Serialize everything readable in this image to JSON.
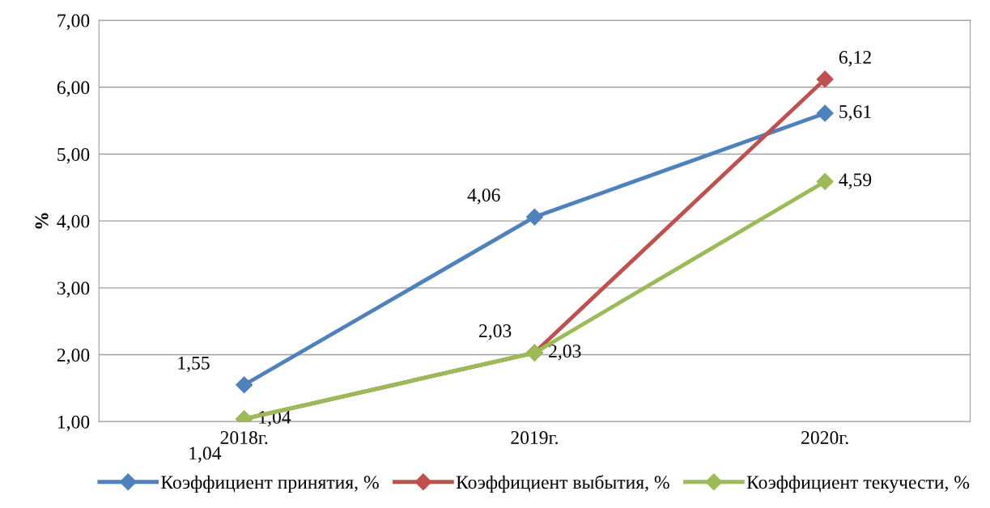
{
  "chart_data": {
    "type": "line",
    "ylabel": "%",
    "categories": [
      "2018г.",
      "2019г.",
      "2020г."
    ],
    "series": [
      {
        "name": "Коэффициент принятия, %",
        "color": "#4f81bd",
        "values": [
          1.55,
          4.06,
          5.61
        ],
        "value_labels": [
          "1,55",
          "4,06",
          "5,61"
        ]
      },
      {
        "name": "Коэффициент выбытия, %",
        "color": "#c0504d",
        "values": [
          1.04,
          2.03,
          6.12
        ],
        "value_labels": [
          "1,04",
          "2,03",
          "6,12"
        ]
      },
      {
        "name": "Коэффициент текучести, %",
        "color": "#9bbb59",
        "values": [
          1.04,
          2.03,
          4.59
        ],
        "value_labels": [
          "1,04",
          "2,03",
          "4,59"
        ]
      }
    ],
    "ylim": [
      1,
      7
    ],
    "yticks": [
      {
        "value": 1,
        "label": "1,00"
      },
      {
        "value": 2,
        "label": "2,00"
      },
      {
        "value": 3,
        "label": "3,00"
      },
      {
        "value": 4,
        "label": "4,00"
      },
      {
        "value": 5,
        "label": "5,00"
      },
      {
        "value": 6,
        "label": "6,00"
      },
      {
        "value": 7,
        "label": "7,00"
      }
    ],
    "grid": "y",
    "legend": "bottom",
    "marker": "diamond",
    "line_style": "solid"
  }
}
